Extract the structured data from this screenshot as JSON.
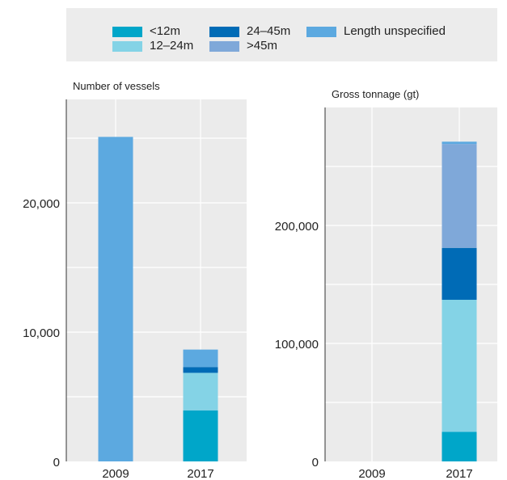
{
  "legend": [
    {
      "label": "<12m",
      "color": "#00a6c9"
    },
    {
      "label": "12–24m",
      "color": "#84d3e6"
    },
    {
      "label": "24–45m",
      "color": "#006bb6"
    },
    {
      "label": ">45m",
      "color": "#7fa8d9"
    },
    {
      "label": "Length unspecified",
      "color": "#5ca9e0"
    }
  ],
  "chart_data": [
    {
      "type": "bar",
      "stacked": true,
      "title": "Number of vessels",
      "categories": [
        "2009",
        "2017"
      ],
      "series": [
        {
          "name": "<12m",
          "color": "#00a6c9",
          "values": [
            0,
            3950
          ]
        },
        {
          "name": "12–24m",
          "color": "#84d3e6",
          "values": [
            0,
            2900
          ]
        },
        {
          "name": "24–45m",
          "color": "#006bb6",
          "values": [
            0,
            450
          ]
        },
        {
          "name": ">45m",
          "color": "#7fa8d9",
          "values": [
            0,
            0
          ]
        },
        {
          "name": "Length unspecified",
          "color": "#5ca9e0",
          "values": [
            25100,
            1350
          ]
        }
      ],
      "ylim": [
        0,
        28000
      ],
      "yticks": [
        0,
        10000,
        20000
      ],
      "ytick_labels": [
        "0",
        "10,000",
        "20,000"
      ],
      "grid": true
    },
    {
      "type": "bar",
      "stacked": true,
      "title": "Gross tonnage (gt)",
      "categories": [
        "2009",
        "2017"
      ],
      "series": [
        {
          "name": "<12m",
          "color": "#00a6c9",
          "values": [
            0,
            25000
          ]
        },
        {
          "name": "12–24m",
          "color": "#84d3e6",
          "values": [
            0,
            112000
          ]
        },
        {
          "name": "24–45m",
          "color": "#006bb6",
          "values": [
            0,
            44000
          ]
        },
        {
          "name": ">45m",
          "color": "#7fa8d9",
          "values": [
            0,
            88000
          ]
        },
        {
          "name": "Length unspecified",
          "color": "#5ca9e0",
          "values": [
            0,
            2000
          ]
        }
      ],
      "ylim": [
        0,
        300000
      ],
      "yticks": [
        0,
        100000,
        200000
      ],
      "ytick_labels": [
        "0",
        "100,000",
        "200,000"
      ],
      "grid": true
    }
  ]
}
